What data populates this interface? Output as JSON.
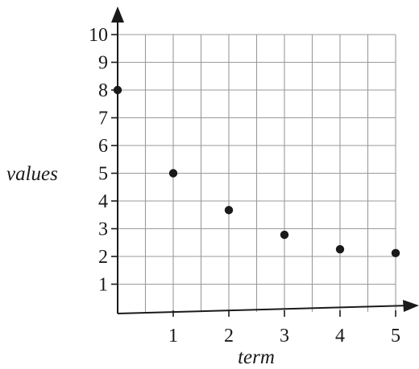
{
  "chart_data": {
    "type": "scatter",
    "title": "",
    "xlabel": "term",
    "ylabel": "values",
    "xlim": [
      0,
      5
    ],
    "ylim": [
      0,
      10
    ],
    "x_ticks": [
      "1",
      "2",
      "3",
      "4",
      "5"
    ],
    "y_ticks": [
      "1",
      "2",
      "3",
      "4",
      "5",
      "6",
      "7",
      "8",
      "9",
      "10"
    ],
    "grid": true,
    "grid_step": 0.5,
    "points": [
      {
        "x": 0,
        "y": 8
      },
      {
        "x": 1,
        "y": 5
      },
      {
        "x": 2,
        "y": 3.67
      },
      {
        "x": 3,
        "y": 2.78
      },
      {
        "x": 4,
        "y": 2.26
      },
      {
        "x": 5,
        "y": 2.12
      }
    ],
    "colors": {
      "point": "#1a1a1a",
      "grid": "#9a9a9a",
      "axis": "#1a1a1a"
    }
  }
}
